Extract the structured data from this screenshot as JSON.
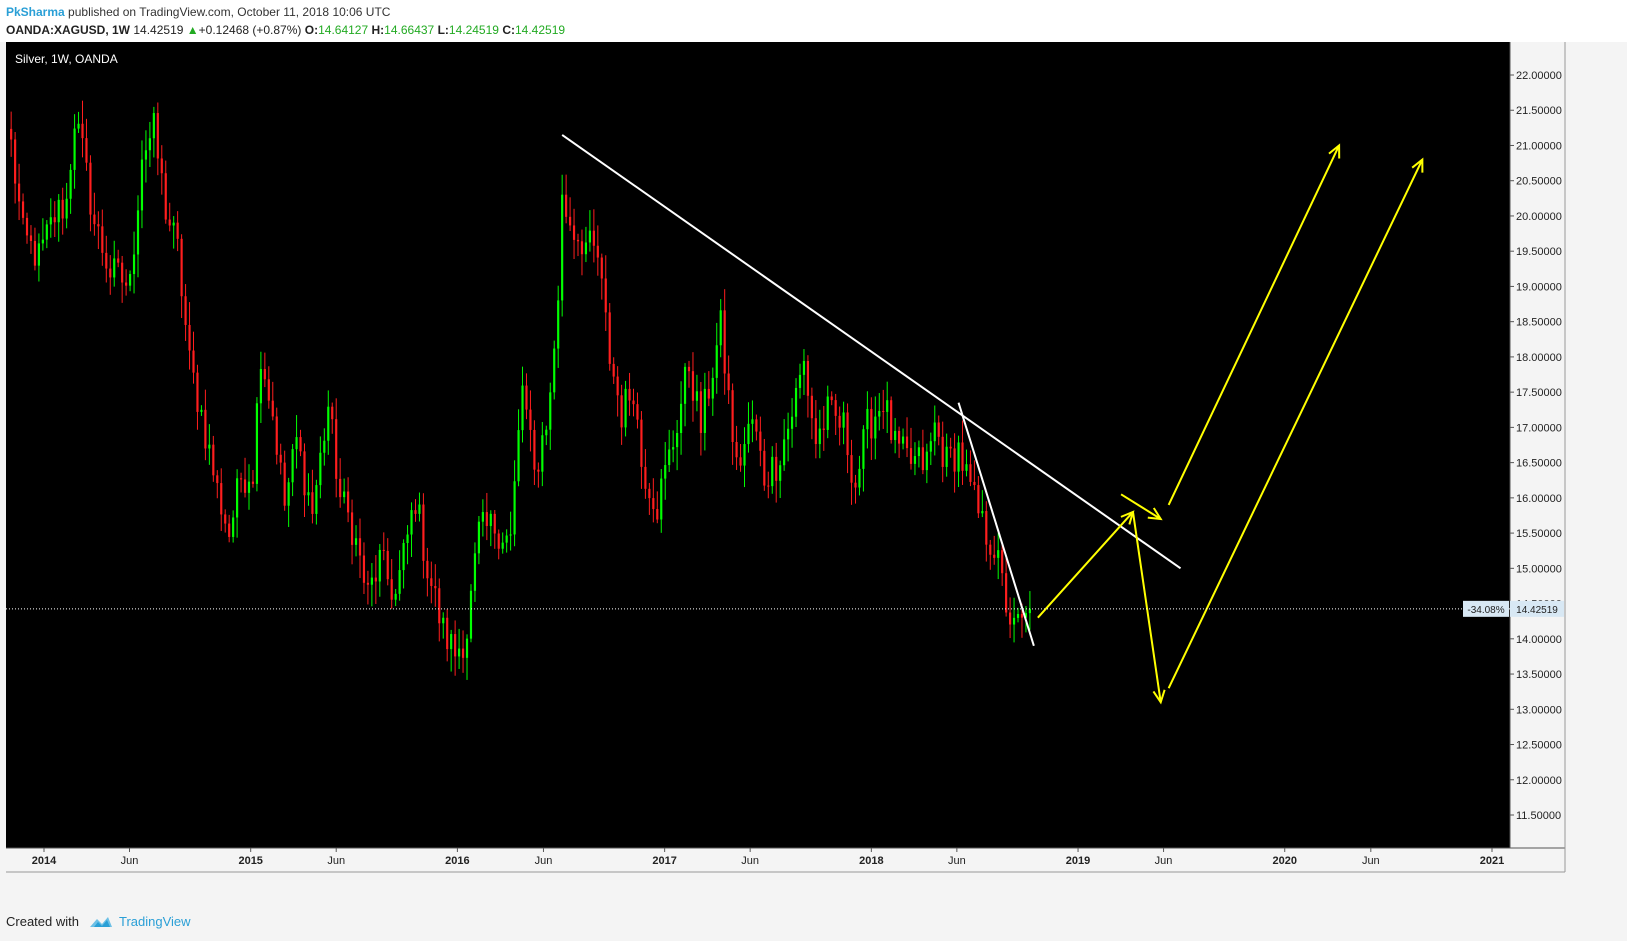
{
  "header": {
    "author": "PkSharma",
    "published_text": "published on TradingView.com, October 11, 2018 10:06 UTC",
    "symbol": "OANDA:XAGUSD, 1W",
    "last": "14.42519",
    "change_arrow": "▲",
    "change": "+0.12468 (+0.87%)",
    "open_label": "O:",
    "open": "14.64127",
    "high_label": "H:",
    "high": "14.66437",
    "low_label": "L:",
    "low": "14.24519",
    "close_label": "C:",
    "close": "14.42519"
  },
  "footer": {
    "created_with": "Created with",
    "brand": "TradingView"
  },
  "colors": {
    "up": "#00ff00",
    "down": "#ff1e1e",
    "trendline": "#ffffff",
    "projection": "#ffff00",
    "background": "#000000"
  },
  "chart_data": {
    "type": "candlestick",
    "title": "Silver, 1W, OANDA",
    "ylim": [
      11.0,
      22.4
    ],
    "y_ticks": [
      "22.00000",
      "21.50000",
      "21.00000",
      "20.50000",
      "20.00000",
      "19.50000",
      "19.00000",
      "18.50000",
      "18.00000",
      "17.50000",
      "17.00000",
      "16.50000",
      "16.00000",
      "15.50000",
      "15.00000",
      "14.50000",
      "14.00000",
      "13.50000",
      "13.00000",
      "12.50000",
      "12.00000",
      "11.50000"
    ],
    "x_ticks": [
      {
        "date": "2014-01-01",
        "label": "2014",
        "bold": true
      },
      {
        "date": "2014-06-01",
        "label": "Jun",
        "bold": false
      },
      {
        "date": "2015-01-01",
        "label": "2015",
        "bold": true
      },
      {
        "date": "2015-06-01",
        "label": "Jun",
        "bold": false
      },
      {
        "date": "2016-01-01",
        "label": "2016",
        "bold": true
      },
      {
        "date": "2016-06-01",
        "label": "Jun",
        "bold": false
      },
      {
        "date": "2017-01-01",
        "label": "2017",
        "bold": true
      },
      {
        "date": "2017-06-01",
        "label": "Jun",
        "bold": false
      },
      {
        "date": "2018-01-01",
        "label": "2018",
        "bold": true
      },
      {
        "date": "2018-06-01",
        "label": "Jun",
        "bold": false
      },
      {
        "date": "2019-01-01",
        "label": "2019",
        "bold": true
      },
      {
        "date": "2019-06-01",
        "label": "Jun",
        "bold": false
      },
      {
        "date": "2020-01-01",
        "label": "2020",
        "bold": true
      },
      {
        "date": "2020-06-01",
        "label": "Jun",
        "bold": false
      },
      {
        "date": "2021-01-01",
        "label": "2021",
        "bold": true
      }
    ],
    "weekly_close_path": [
      [
        "2013-11-04",
        21.0
      ],
      [
        "2013-11-25",
        19.7
      ],
      [
        "2013-12-23",
        19.4
      ],
      [
        "2014-01-20",
        20.0
      ],
      [
        "2014-02-10",
        20.2
      ],
      [
        "2014-02-24",
        21.4
      ],
      [
        "2014-03-10",
        20.9
      ],
      [
        "2014-03-31",
        19.9
      ],
      [
        "2014-04-28",
        19.2
      ],
      [
        "2014-05-19",
        19.1
      ],
      [
        "2014-06-02",
        19.0
      ],
      [
        "2014-06-23",
        20.9
      ],
      [
        "2014-07-14",
        21.2
      ],
      [
        "2014-08-04",
        20.1
      ],
      [
        "2014-08-25",
        19.5
      ],
      [
        "2014-09-15",
        17.9
      ],
      [
        "2014-10-06",
        17.2
      ],
      [
        "2014-11-03",
        16.1
      ],
      [
        "2014-11-24",
        15.5
      ],
      [
        "2014-12-15",
        16.3
      ],
      [
        "2015-01-05",
        16.4
      ],
      [
        "2015-01-19",
        18.1
      ],
      [
        "2015-02-09",
        17.2
      ],
      [
        "2015-03-02",
        15.9
      ],
      [
        "2015-03-23",
        16.8
      ],
      [
        "2015-04-20",
        15.8
      ],
      [
        "2015-05-18",
        17.3
      ],
      [
        "2015-06-08",
        16.0
      ],
      [
        "2015-06-29",
        15.6
      ],
      [
        "2015-07-27",
        14.6
      ],
      [
        "2015-08-17",
        15.1
      ],
      [
        "2015-09-14",
        14.6
      ],
      [
        "2015-10-19",
        16.0
      ],
      [
        "2015-11-09",
        15.0
      ],
      [
        "2015-12-07",
        14.1
      ],
      [
        "2015-12-28",
        13.8
      ],
      [
        "2016-01-18",
        14.1
      ],
      [
        "2016-02-08",
        15.5
      ],
      [
        "2016-03-07",
        15.6
      ],
      [
        "2016-04-04",
        15.4
      ],
      [
        "2016-04-25",
        17.6
      ],
      [
        "2016-05-16",
        16.3
      ],
      [
        "2016-06-13",
        17.4
      ],
      [
        "2016-06-27",
        18.9
      ],
      [
        "2016-07-04",
        20.2
      ],
      [
        "2016-07-25",
        19.8
      ],
      [
        "2016-08-15",
        19.6
      ],
      [
        "2016-09-05",
        19.4
      ],
      [
        "2016-09-26",
        18.0
      ],
      [
        "2016-10-17",
        17.2
      ],
      [
        "2016-11-07",
        17.6
      ],
      [
        "2016-11-21",
        16.5
      ],
      [
        "2016-12-19",
        15.9
      ],
      [
        "2017-01-16",
        16.8
      ],
      [
        "2017-02-13",
        17.9
      ],
      [
        "2017-03-06",
        17.0
      ],
      [
        "2017-04-10",
        18.4
      ],
      [
        "2017-05-08",
        16.4
      ],
      [
        "2017-06-05",
        17.1
      ],
      [
        "2017-06-26",
        16.3
      ],
      [
        "2017-07-17",
        16.5
      ],
      [
        "2017-08-07",
        17.0
      ],
      [
        "2017-09-04",
        17.9
      ],
      [
        "2017-09-25",
        16.8
      ],
      [
        "2017-10-16",
        17.2
      ],
      [
        "2017-11-13",
        17.0
      ],
      [
        "2017-12-04",
        16.2
      ],
      [
        "2017-12-25",
        17.0
      ],
      [
        "2018-01-22",
        17.4
      ],
      [
        "2018-02-12",
        16.7
      ],
      [
        "2018-03-12",
        16.5
      ],
      [
        "2018-04-09",
        16.5
      ],
      [
        "2018-04-23",
        17.0
      ],
      [
        "2018-05-14",
        16.5
      ],
      [
        "2018-06-04",
        16.7
      ],
      [
        "2018-06-25",
        16.1
      ],
      [
        "2018-07-16",
        15.6
      ],
      [
        "2018-08-06",
        15.3
      ],
      [
        "2018-08-27",
        14.5
      ],
      [
        "2018-09-10",
        14.1
      ],
      [
        "2018-09-24",
        14.3
      ],
      [
        "2018-10-08",
        14.43
      ]
    ],
    "last_price": {
      "value": 14.42519,
      "label": "14.42519",
      "pct": "-34.08%"
    },
    "annotations": {
      "trendlines": [
        {
          "name": "main-resistance",
          "from": [
            "2016-07-04",
            21.15
          ],
          "to": [
            "2019-07-01",
            15.0
          ]
        },
        {
          "name": "steep-down",
          "from": [
            "2018-06-04",
            17.35
          ],
          "to": [
            "2018-10-15",
            13.9
          ]
        }
      ],
      "projection_arrows": [
        {
          "name": "proj-up-1",
          "from": [
            "2018-10-22",
            14.3
          ],
          "to": [
            "2019-04-08",
            15.8
          ]
        },
        {
          "name": "proj-small",
          "from": [
            "2019-03-18",
            16.05
          ],
          "to": [
            "2019-05-27",
            15.7
          ]
        },
        {
          "name": "proj-down",
          "from": [
            "2019-04-08",
            15.8
          ],
          "to": [
            "2019-05-27",
            13.1
          ]
        },
        {
          "name": "proj-up-big-1",
          "from": [
            "2019-06-10",
            15.9
          ],
          "to": [
            "2020-04-06",
            21.0
          ]
        },
        {
          "name": "proj-up-big-2",
          "from": [
            "2019-06-10",
            13.3
          ],
          "to": [
            "2020-08-31",
            20.8
          ]
        }
      ]
    }
  }
}
